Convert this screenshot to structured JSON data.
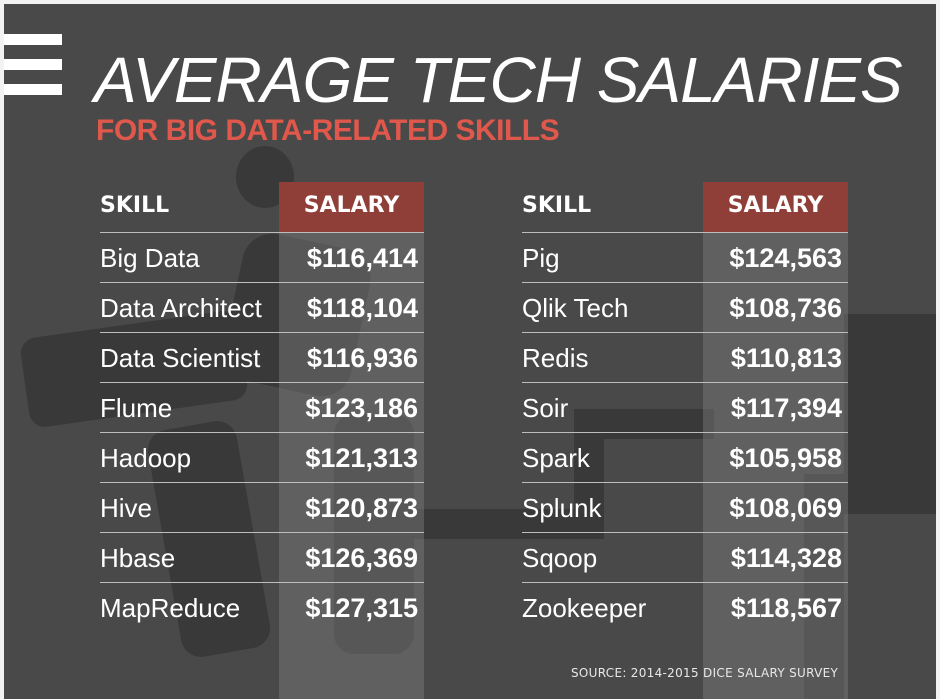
{
  "title": "AVERAGE TECH SALARIES",
  "subtitle": "FOR BIG DATA-RELATED SKILLS",
  "source": "SOURCE: 2014-2015 DICE SALARY SURVEY",
  "colors": {
    "background": "#4a4949",
    "header_salary": "#8f3e38",
    "subtitle": "#e0584c",
    "text": "#ffffff"
  },
  "chart_data": {
    "type": "table",
    "title": "AVERAGE TECH SALARIES",
    "subtitle": "FOR BIG DATA-RELATED SKILLS",
    "columns": [
      "SKILL",
      "SALARY"
    ],
    "left_table": [
      {
        "skill": "Big Data",
        "salary": "$116,414"
      },
      {
        "skill": "Data Architect",
        "salary": "$118,104"
      },
      {
        "skill": "Data Scientist",
        "salary": "$116,936"
      },
      {
        "skill": "Flume",
        "salary": "$123,186"
      },
      {
        "skill": "Hadoop",
        "salary": "$121,313"
      },
      {
        "skill": "Hive",
        "salary": "$120,873"
      },
      {
        "skill": "Hbase",
        "salary": "$126,369"
      },
      {
        "skill": "MapReduce",
        "salary": "$127,315"
      }
    ],
    "right_table": [
      {
        "skill": "Pig",
        "salary": "$124,563"
      },
      {
        "skill": "Qlik Tech",
        "salary": "$108,736"
      },
      {
        "skill": "Redis",
        "salary": "$110,813"
      },
      {
        "skill": "Soir",
        "salary": "$117,394"
      },
      {
        "skill": "Spark",
        "salary": "$105,958"
      },
      {
        "skill": "Splunk",
        "salary": "$108,069"
      },
      {
        "skill": "Sqoop",
        "salary": "$114,328"
      },
      {
        "skill": "Zookeeper",
        "salary": "$118,567"
      }
    ],
    "source": "SOURCE: 2014-2015 DICE SALARY SURVEY"
  }
}
